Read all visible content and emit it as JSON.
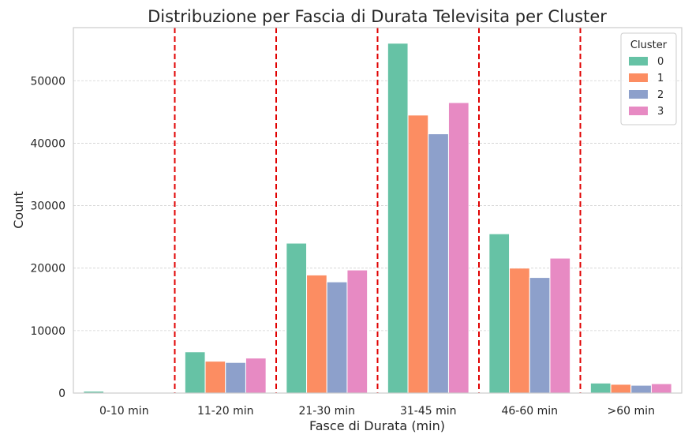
{
  "chart_data": {
    "type": "bar",
    "title": "Distribuzione per Fascia di Durata Televisita per Cluster",
    "xlabel": "Fasce di Durata (min)",
    "ylabel": "Count",
    "categories": [
      "0-10 min",
      "11-20 min",
      "21-30 min",
      "31-45 min",
      "46-60 min",
      ">60 min"
    ],
    "series": [
      {
        "name": "0",
        "color": "#66c2a5",
        "values": [
          300,
          6600,
          24000,
          56000,
          25500,
          1600
        ]
      },
      {
        "name": "1",
        "color": "#fc8d62",
        "values": [
          80,
          5100,
          18900,
          44500,
          20000,
          1400
        ]
      },
      {
        "name": "2",
        "color": "#8da0cb",
        "values": [
          70,
          4900,
          17800,
          41500,
          18500,
          1250
        ]
      },
      {
        "name": "3",
        "color": "#e78ac3",
        "values": [
          90,
          5600,
          19700,
          46500,
          21600,
          1500
        ]
      }
    ],
    "ylim": [
      0,
      58500
    ],
    "yticks": [
      0,
      10000,
      20000,
      30000,
      40000,
      50000
    ],
    "grid": "horizontal",
    "legend": {
      "title": "Cluster",
      "placement": "top-right"
    },
    "separators": {
      "style": "dashed",
      "color": "#e00000",
      "between_categories": true
    }
  }
}
